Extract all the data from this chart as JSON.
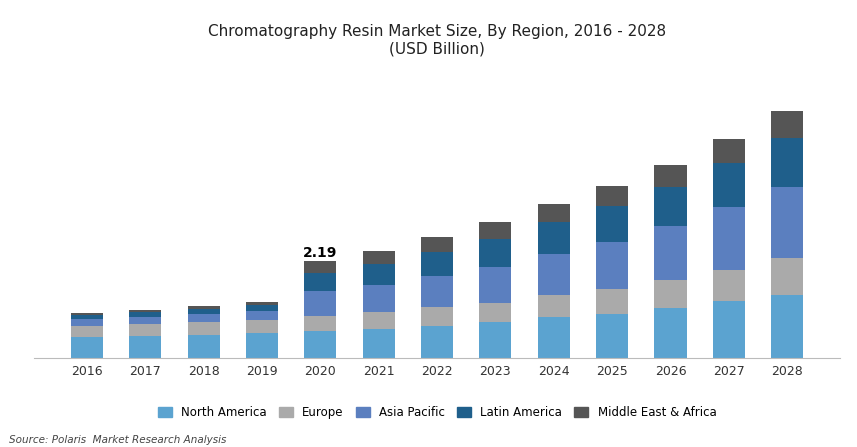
{
  "years": [
    2016,
    2017,
    2018,
    2019,
    2020,
    2021,
    2022,
    2023,
    2024,
    2025,
    2026,
    2027,
    2028
  ],
  "north_america": [
    0.46,
    0.49,
    0.52,
    0.55,
    0.6,
    0.65,
    0.72,
    0.8,
    0.92,
    1.0,
    1.12,
    1.28,
    1.42
  ],
  "europe": [
    0.26,
    0.27,
    0.29,
    0.31,
    0.35,
    0.38,
    0.42,
    0.45,
    0.5,
    0.57,
    0.65,
    0.72,
    0.84
  ],
  "asia_pacific": [
    0.15,
    0.17,
    0.19,
    0.21,
    0.56,
    0.62,
    0.72,
    0.82,
    0.94,
    1.06,
    1.22,
    1.42,
    1.62
  ],
  "latin_america": [
    0.09,
    0.1,
    0.11,
    0.12,
    0.42,
    0.48,
    0.55,
    0.63,
    0.72,
    0.82,
    0.9,
    1.0,
    1.12
  ],
  "middle_east": [
    0.05,
    0.06,
    0.07,
    0.08,
    0.26,
    0.29,
    0.33,
    0.38,
    0.42,
    0.46,
    0.5,
    0.55,
    0.6
  ],
  "annotation_year": 2020,
  "annotation_value": "2.19",
  "colors": {
    "north_america": "#5BA3D0",
    "europe": "#AAAAAA",
    "asia_pacific": "#5B7FBF",
    "latin_america": "#1F5F8B",
    "middle_east": "#555555"
  },
  "legend_labels": [
    "North America",
    "Europe",
    "Asia Pacific",
    "Latin America",
    "Middle East & Africa"
  ],
  "title_line1": "Chromatography Resin Market Size, By Region, 2016 - 2028",
  "title_line2": "(USD Billion)",
  "source_text": "Source: Polaris  Market Research Analysis",
  "background_color": "#FFFFFF",
  "bar_width": 0.55
}
